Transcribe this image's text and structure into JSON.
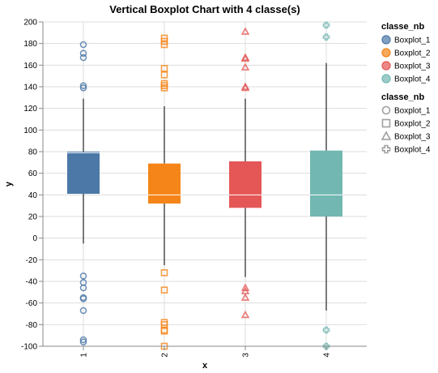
{
  "chart_data": {
    "type": "boxplot",
    "title": "Vertical Boxplot Chart with 4 classe(s)",
    "xlabel": "x",
    "ylabel": "y",
    "ylim": [
      -100,
      200
    ],
    "y_ticks": [
      -100,
      -80,
      -60,
      -40,
      -20,
      0,
      20,
      40,
      60,
      80,
      100,
      120,
      140,
      160,
      180,
      200
    ],
    "grid": true,
    "categories": [
      "1",
      "2",
      "3",
      "4"
    ],
    "series": [
      {
        "name": "Boxplot_1",
        "color": "#4c78a8",
        "shape": "circle",
        "x": "1",
        "whisker_low": -5,
        "q1": 41,
        "median": 79,
        "q3": 80,
        "whisker_high": 129,
        "outliers": [
          179,
          171,
          167,
          141,
          139,
          -35,
          -41,
          -46,
          -55,
          -56,
          -67,
          -94,
          -96
        ]
      },
      {
        "name": "Boxplot_2",
        "color": "#f58518",
        "shape": "square",
        "x": "2",
        "whisker_low": -25,
        "q1": 32,
        "median": 40,
        "q3": 69,
        "whisker_high": 122,
        "outliers": [
          185,
          182,
          179,
          157,
          151,
          143,
          141,
          139,
          -32,
          -48,
          -78,
          -80,
          -85,
          -86,
          -100
        ]
      },
      {
        "name": "Boxplot_3",
        "color": "#e45756",
        "shape": "triangle",
        "x": "3",
        "whisker_low": -36,
        "q1": 28,
        "median": 40,
        "q3": 71,
        "whisker_high": 129,
        "outliers": [
          191,
          167,
          166,
          158,
          140,
          139,
          -46,
          -49,
          -55,
          -71
        ]
      },
      {
        "name": "Boxplot_4",
        "color": "#72b7b2",
        "shape": "cross",
        "x": "4",
        "whisker_low": -67,
        "q1": 20,
        "median": 40,
        "q3": 81,
        "whisker_high": 162,
        "outliers": [
          197,
          186,
          -85,
          -100
        ]
      }
    ],
    "legends": [
      {
        "title": "classe_nb",
        "kind": "color",
        "entries": [
          "Boxplot_1",
          "Boxplot_2",
          "Boxplot_3",
          "Boxplot_4"
        ]
      },
      {
        "title": "classe_nb",
        "kind": "shape",
        "entries": [
          "Boxplot_1",
          "Boxplot_2",
          "Boxplot_3",
          "Boxplot_4"
        ]
      }
    ],
    "legend_position": "right"
  }
}
